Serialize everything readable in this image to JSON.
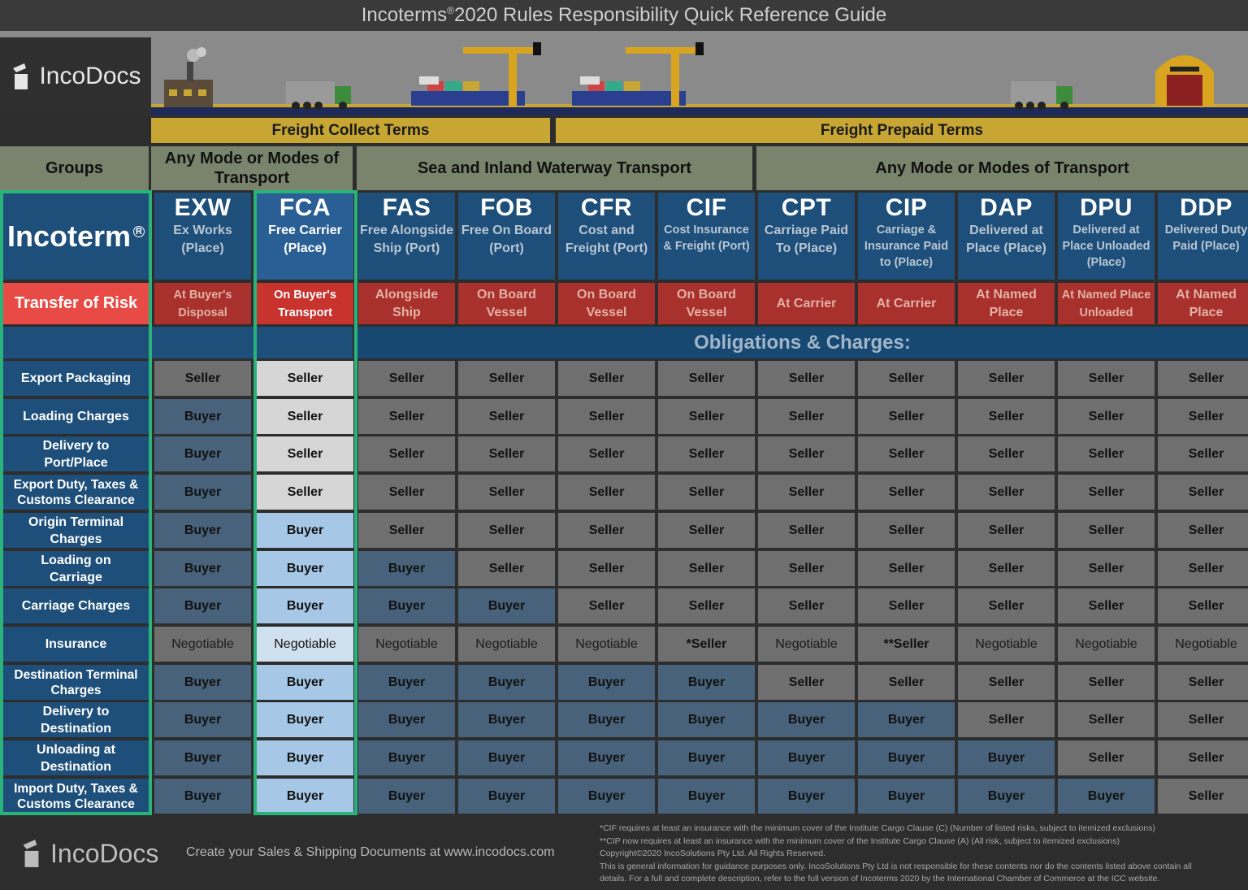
{
  "header": {
    "title_main": "Incoterms",
    "title_mark": "®",
    "title_rest": "2020 Rules Responsibility Quick Reference Guide"
  },
  "brand": {
    "name": "IncoDocs",
    "logo_icon": "incodocs-logo-icon"
  },
  "terms": {
    "freight_collect": "Freight Collect Terms",
    "freight_prepaid": "Freight Prepaid Terms"
  },
  "groups": {
    "label": "Groups",
    "any_mode_left": "Any Mode or Modes of Transport",
    "sea": "Sea and Inland Waterway Transport",
    "any_mode_right": "Any Mode or Modes of Transport"
  },
  "incoterm_label": "Incoterm",
  "incoterm_mark": "R",
  "risk_label": "Transfer of Risk",
  "obligations_heading": "Obligations & Charges:",
  "columns": [
    {
      "code": "EXW",
      "desc": "Ex Works (Place)",
      "risk": "At Buyer's Disposal"
    },
    {
      "code": "FCA",
      "desc": "Free Carrier (Place)",
      "risk": "On Buyer's Transport"
    },
    {
      "code": "FAS",
      "desc": "Free Alongside Ship (Port)",
      "risk": "Alongside Ship"
    },
    {
      "code": "FOB",
      "desc": "Free On Board (Port)",
      "risk": "On Board Vessel"
    },
    {
      "code": "CFR",
      "desc": "Cost and Freight (Port)",
      "risk": "On Board Vessel"
    },
    {
      "code": "CIF",
      "desc": "Cost Insurance & Freight (Port)",
      "risk": "On Board Vessel"
    },
    {
      "code": "CPT",
      "desc": "Carriage Paid To (Place)",
      "risk": "At Carrier"
    },
    {
      "code": "CIP",
      "desc": "Carriage & Insurance Paid to (Place)",
      "risk": "At Carrier"
    },
    {
      "code": "DAP",
      "desc": "Delivered at Place (Place)",
      "risk": "At Named Place"
    },
    {
      "code": "DPU",
      "desc": "Delivered at Place Unloaded (Place)",
      "risk": "At Named Place Unloaded"
    },
    {
      "code": "DDP",
      "desc": "Delivered Duty Paid (Place)",
      "risk": "At Named Place"
    }
  ],
  "rows": [
    {
      "label": "Export Packaging",
      "values": [
        "Seller",
        "Seller",
        "Seller",
        "Seller",
        "Seller",
        "Seller",
        "Seller",
        "Seller",
        "Seller",
        "Seller",
        "Seller"
      ]
    },
    {
      "label": "Loading Charges",
      "values": [
        "Buyer",
        "Seller",
        "Seller",
        "Seller",
        "Seller",
        "Seller",
        "Seller",
        "Seller",
        "Seller",
        "Seller",
        "Seller"
      ]
    },
    {
      "label": "Delivery to Port/Place",
      "values": [
        "Buyer",
        "Seller",
        "Seller",
        "Seller",
        "Seller",
        "Seller",
        "Seller",
        "Seller",
        "Seller",
        "Seller",
        "Seller"
      ]
    },
    {
      "label": "Export Duty, Taxes & Customs Clearance",
      "values": [
        "Buyer",
        "Seller",
        "Seller",
        "Seller",
        "Seller",
        "Seller",
        "Seller",
        "Seller",
        "Seller",
        "Seller",
        "Seller"
      ]
    },
    {
      "label": "Origin Terminal Charges",
      "values": [
        "Buyer",
        "Buyer",
        "Seller",
        "Seller",
        "Seller",
        "Seller",
        "Seller",
        "Seller",
        "Seller",
        "Seller",
        "Seller"
      ]
    },
    {
      "label": "Loading on Carriage",
      "values": [
        "Buyer",
        "Buyer",
        "Buyer",
        "Seller",
        "Seller",
        "Seller",
        "Seller",
        "Seller",
        "Seller",
        "Seller",
        "Seller"
      ]
    },
    {
      "label": "Carriage Charges",
      "values": [
        "Buyer",
        "Buyer",
        "Buyer",
        "Buyer",
        "Seller",
        "Seller",
        "Seller",
        "Seller",
        "Seller",
        "Seller",
        "Seller"
      ]
    },
    {
      "label": "Insurance",
      "values": [
        "Negotiable",
        "Negotiable",
        "Negotiable",
        "Negotiable",
        "Negotiable",
        "*Seller",
        "Negotiable",
        "**Seller",
        "Negotiable",
        "Negotiable",
        "Negotiable"
      ]
    },
    {
      "label": "Destination Terminal Charges",
      "values": [
        "Buyer",
        "Buyer",
        "Buyer",
        "Buyer",
        "Buyer",
        "Buyer",
        "Seller",
        "Seller",
        "Seller",
        "Seller",
        "Seller"
      ]
    },
    {
      "label": "Delivery to Destination",
      "values": [
        "Buyer",
        "Buyer",
        "Buyer",
        "Buyer",
        "Buyer",
        "Buyer",
        "Buyer",
        "Buyer",
        "Seller",
        "Seller",
        "Seller"
      ]
    },
    {
      "label": "Unloading at Destination",
      "values": [
        "Buyer",
        "Buyer",
        "Buyer",
        "Buyer",
        "Buyer",
        "Buyer",
        "Buyer",
        "Buyer",
        "Buyer",
        "Seller",
        "Seller"
      ]
    },
    {
      "label": "Import Duty, Taxes & Customs Clearance",
      "values": [
        "Buyer",
        "Buyer",
        "Buyer",
        "Buyer",
        "Buyer",
        "Buyer",
        "Buyer",
        "Buyer",
        "Buyer",
        "Buyer",
        "Seller"
      ]
    }
  ],
  "footer": {
    "tagline": "Create your Sales & Shipping Documents at www.incodocs.com",
    "notes": [
      "*CIF requires at least an insurance with the minimum cover of the Institute Cargo Clause (C) (Number of listed risks, subject to itemized exclusions)",
      "**CIP now requires at least an insurance with the minimum cover of the Institute Cargo Clause (A) (All risk, subject to itemized exclusions)",
      "Copyright©2020 IncoSolutions Pty Ltd. All Rights Reserved.",
      "This is general information for guidance purposes only.  IncoSolutions Pty Ltd is not responsible for these contents nor do the contents listed above contain all",
      "details.  For a full and complete description, refer to the full version of Incoterms   2020 by the International Chamber of Commerce at the ICC website."
    ]
  },
  "colors": {
    "navy": "#1e4f7a",
    "risk_red": "#a8302d",
    "gold": "#c7a633",
    "olive": "#7a846d",
    "highlight_green": "#29b37b",
    "buyer_blue": "#47627a",
    "seller_grey": "#6f6f6f"
  }
}
